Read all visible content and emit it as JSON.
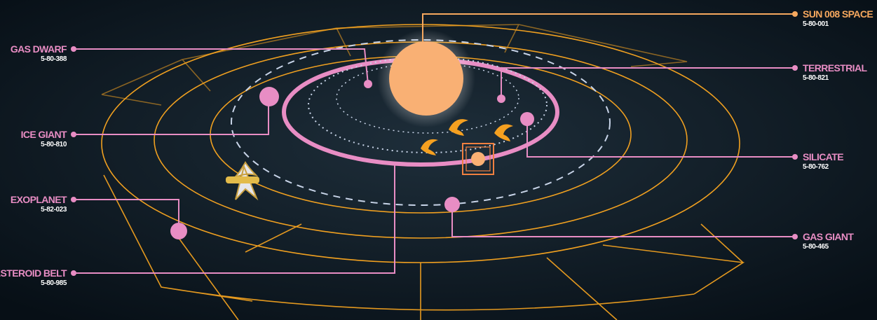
{
  "labels": [
    {
      "name": "GAS DWARF",
      "code": "5-80-388"
    },
    {
      "name": "ICE GIANT",
      "code": "5-80-810"
    },
    {
      "name": "EXOPLANET",
      "code": "5-82-023"
    },
    {
      "name": "ASTEROID BELT",
      "code": "5-80-985"
    },
    {
      "name": "SUN 008 SPACE",
      "code": "5-80-001"
    },
    {
      "name": "TERRESTRIAL",
      "code": "5-80-821"
    },
    {
      "name": "SILICATE",
      "code": "5-80-762"
    },
    {
      "name": "GAS GIANT",
      "code": "5-80-465"
    }
  ]
}
